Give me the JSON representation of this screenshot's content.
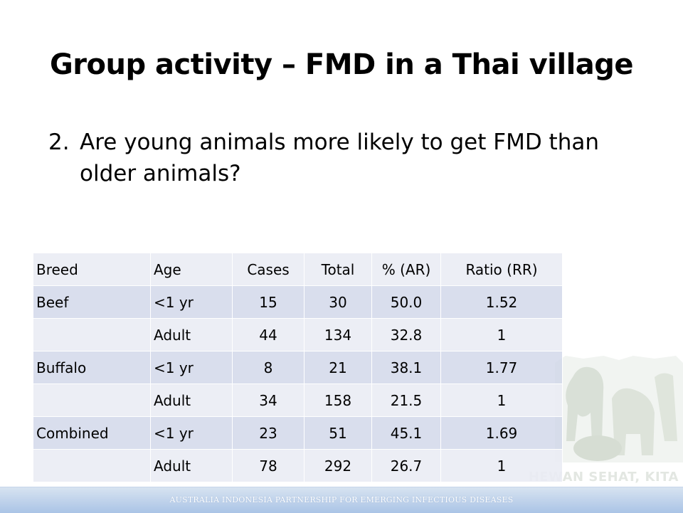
{
  "slide": {
    "title": "Group activity – FMD in a Thai village",
    "question_number": "2.",
    "question_text": "Are young animals more likely to get FMD than older animals?"
  },
  "table": {
    "headers": [
      "Breed",
      "Age",
      "Cases",
      "Total",
      "% (AR)",
      "Ratio (RR)"
    ],
    "rows": [
      [
        "Beef",
        "<1 yr",
        "15",
        "30",
        "50.0",
        "1.52"
      ],
      [
        "",
        "Adult",
        "44",
        "134",
        "32.8",
        "1"
      ],
      [
        "Buffalo",
        "<1 yr",
        "8",
        "21",
        "38.1",
        "1.77"
      ],
      [
        "",
        "Adult",
        "34",
        "158",
        "21.5",
        "1"
      ],
      [
        "Combined",
        "<1 yr",
        "23",
        "51",
        "45.1",
        "1.69"
      ],
      [
        "",
        "Adult",
        "78",
        "292",
        "26.7",
        "1"
      ]
    ]
  },
  "watermark": {
    "text": "HEWAN SEHAT, KITA SEHAT",
    "icon": "livestock-silhouette-icon"
  },
  "footer": {
    "text": "AUSTRALIA INDONESIA PARTNERSHIP FOR EMERGING INFECTIOUS DISEASES"
  },
  "colors": {
    "row_light": "#e9ecf4",
    "row_dark": "#cfd6e8",
    "footer_band": "#bcd0ea",
    "watermark": "#e3e7e2"
  }
}
